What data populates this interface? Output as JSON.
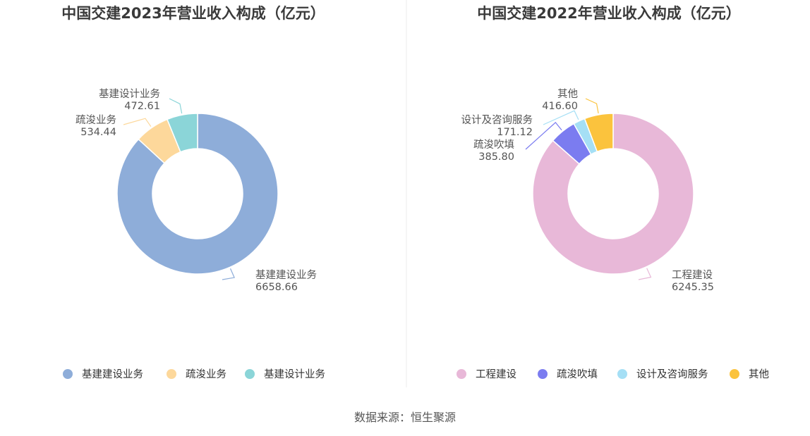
{
  "source": "数据来源：恒生聚源",
  "chart_data": [
    {
      "type": "pie",
      "title": "中国交建2023年营业收入构成（亿元）",
      "categories": [
        "基建建设业务",
        "疏浚业务",
        "基建设计业务"
      ],
      "values": [
        6658.66,
        534.44,
        472.61
      ],
      "value_labels": [
        "6658.66",
        "534.44",
        "472.61"
      ],
      "colors": [
        "#8eadd9",
        "#fdd89b",
        "#8bd5d8"
      ],
      "legend": "bottom"
    },
    {
      "type": "pie",
      "title": "中国交建2022年营业收入构成（亿元）",
      "categories": [
        "工程建设",
        "疏浚吹填",
        "设计及咨询服务",
        "其他"
      ],
      "values": [
        6245.35,
        385.8,
        171.12,
        416.6
      ],
      "value_labels": [
        "6245.35",
        "385.80",
        "171.12",
        "416.60"
      ],
      "colors": [
        "#e8b8d8",
        "#7b7cf0",
        "#a5dff5",
        "#fbc33d"
      ],
      "legend": "bottom"
    }
  ]
}
